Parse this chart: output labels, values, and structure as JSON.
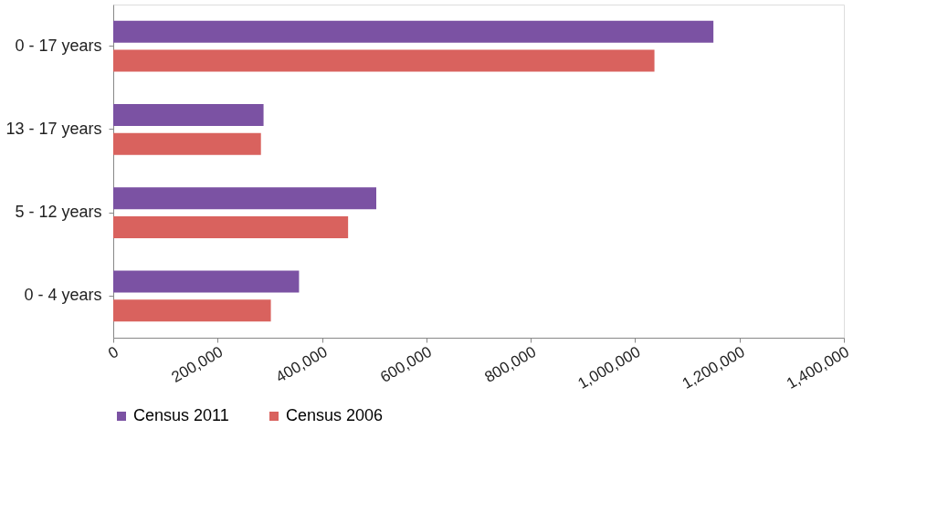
{
  "chart_data": {
    "type": "bar",
    "orientation": "horizontal",
    "categories": [
      "0 - 17 years",
      "13 - 17 years",
      "5 - 12 years",
      "0 - 4 years"
    ],
    "series": [
      {
        "name": "Census 2011",
        "color": "#7b52a3",
        "values": [
          1150000,
          288000,
          504000,
          356000
        ]
      },
      {
        "name": "Census 2006",
        "color": "#d9625e",
        "values": [
          1037000,
          283000,
          450000,
          302000
        ]
      }
    ],
    "xlim": [
      0,
      1400000
    ],
    "xticks": [
      0,
      {
        "value": 200000,
        "label": "200,000"
      },
      {
        "value": 400000,
        "label": "400,000"
      },
      {
        "value": 600000,
        "label": "600,000"
      },
      {
        "value": 800000,
        "label": "800,000"
      },
      {
        "value": 1000000,
        "label": "1,000,000"
      },
      {
        "value": 1200000,
        "label": "1,200,000"
      },
      {
        "value": 1400000,
        "label": "1,400,000"
      }
    ],
    "grid": false,
    "legend": "bottom"
  }
}
